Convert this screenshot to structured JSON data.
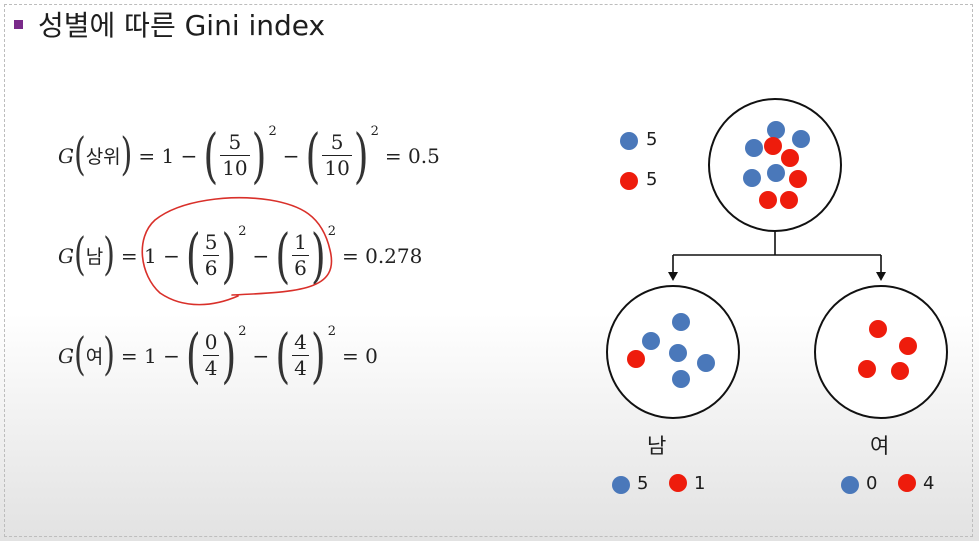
{
  "title": "성별에 따른 Gini index",
  "colors": {
    "bullet": "#7a2a8a",
    "blue": "#4a78ba",
    "red": "#ee1c0c",
    "annotation": "#d9302a"
  },
  "equations": {
    "top": {
      "g": "G",
      "label": "상위",
      "prefix": "= 1 −",
      "f1": {
        "num": "5",
        "den": "10"
      },
      "exp1": "2",
      "minus": "−",
      "f2": {
        "num": "5",
        "den": "10"
      },
      "exp2": "2",
      "result": "= 0.5"
    },
    "male": {
      "g": "G",
      "label": "남",
      "prefix": "= 1 −",
      "f1": {
        "num": "5",
        "den": "6"
      },
      "exp1": "2",
      "minus": "−",
      "f2": {
        "num": "1",
        "den": "6"
      },
      "exp2": "2",
      "result": "= 0.278"
    },
    "female": {
      "g": "G",
      "label": "여",
      "prefix": "= 1 −",
      "f1": {
        "num": "0",
        "den": "4"
      },
      "exp1": "2",
      "minus": "−",
      "f2": {
        "num": "4",
        "den": "4"
      },
      "exp2": "2",
      "result": "= 0"
    }
  },
  "tree": {
    "root": {
      "blue_count": "5",
      "red_count": "5",
      "blue": 5,
      "red": 5
    },
    "left": {
      "label": "남",
      "blue_count": "5",
      "red_count": "1",
      "blue": 5,
      "red": 1
    },
    "right": {
      "label": "여",
      "blue_count": "0",
      "red_count": "4",
      "blue": 0,
      "red": 4
    }
  }
}
